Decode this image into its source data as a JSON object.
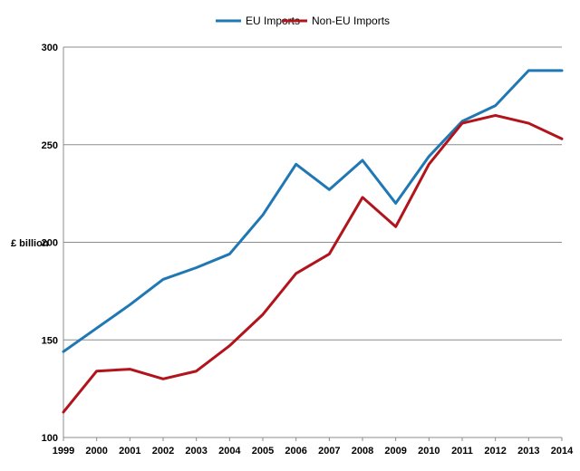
{
  "chart_data": {
    "type": "line",
    "ylabel": "£ billion",
    "xlabel": "",
    "ylim": [
      100,
      300
    ],
    "yticks": [
      100,
      150,
      200,
      250,
      300
    ],
    "grid": true,
    "legend_position": "top-center",
    "categories": [
      "1999",
      "2000",
      "2001",
      "2002",
      "2003",
      "2004",
      "2005",
      "2006",
      "2007",
      "2008",
      "2009",
      "2010",
      "2011",
      "2012",
      "2013",
      "2014"
    ],
    "series": [
      {
        "name": "EU Imports",
        "color": "#1f77b4",
        "values": [
          144,
          156,
          168,
          181,
          187,
          194,
          214,
          240,
          227,
          242,
          220,
          244,
          262,
          270,
          288,
          288
        ]
      },
      {
        "name": "Non-EU Imports",
        "color": "#b2141c",
        "values": [
          113,
          134,
          135,
          130,
          134,
          147,
          163,
          184,
          194,
          223,
          208,
          240,
          261,
          265,
          261,
          253
        ]
      }
    ]
  }
}
